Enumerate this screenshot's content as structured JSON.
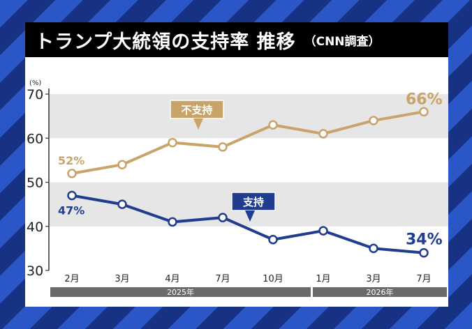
{
  "title": {
    "main": "トランプ大統領の支持率 推移",
    "sub": "（CNN調査）"
  },
  "colors": {
    "disapprove": "#c9a46a",
    "approve": "#1f3c8f",
    "band": "#e6e6e6",
    "year_bar": "#6b6b6b"
  },
  "chart_data": {
    "type": "line",
    "title": "トランプ大統領の支持率 推移（CNN調査）",
    "unit_label": "(%)",
    "ylim": [
      30,
      70
    ],
    "yticks": [
      "70",
      "60",
      "50",
      "40",
      "30"
    ],
    "categories": [
      "2月",
      "3月",
      "4月",
      "7月",
      "10月",
      "1月",
      "3月",
      "7月"
    ],
    "year_groups": [
      {
        "label": "2025年",
        "start": 0,
        "end": 4
      },
      {
        "label": "2026年",
        "start": 5,
        "end": 7
      }
    ],
    "series": [
      {
        "name": "不支持",
        "values": [
          52,
          54,
          59,
          58,
          63,
          61,
          64,
          66
        ],
        "start_label": "52%",
        "end_label": "66%"
      },
      {
        "name": "支持",
        "values": [
          47,
          45,
          41,
          42,
          37,
          39,
          35,
          34
        ],
        "start_label": "47%",
        "end_label": "34%"
      }
    ]
  }
}
